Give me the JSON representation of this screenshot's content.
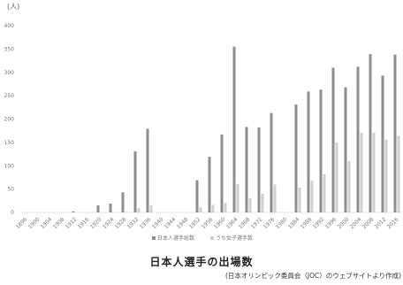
{
  "caption": {
    "title": "日本人選手の出場数",
    "source": "(日本オリンピック委員会（JOC）のウェブサイトより作成)"
  },
  "chart_data": {
    "type": "bar",
    "unit_label": "(人)",
    "ylim": [
      0,
      400
    ],
    "yticks": [
      0,
      50,
      100,
      150,
      200,
      250,
      300,
      350,
      400
    ],
    "grid": false,
    "legend_position": "bottom",
    "categories": [
      "1896",
      "1900",
      "1904",
      "1908",
      "1912",
      "1916",
      "1920",
      "1924",
      "1928",
      "1932",
      "1936",
      "1940",
      "1944",
      "1948",
      "1952",
      "1956",
      "1960",
      "1964",
      "1968",
      "1972",
      "1976",
      "1980",
      "1984",
      "1988",
      "1992",
      "1996",
      "2000",
      "2004",
      "2008",
      "2012",
      "2016"
    ],
    "series": [
      {
        "name": "日本人選手総数",
        "color": "#8e8e8e",
        "values": [
          0,
          0,
          0,
          0,
          2,
          0,
          15,
          19,
          43,
          131,
          179,
          0,
          0,
          0,
          69,
          119,
          167,
          355,
          183,
          182,
          213,
          0,
          231,
          259,
          263,
          310,
          268,
          312,
          339,
          293,
          338
        ]
      },
      {
        "name": "うち女子選手数",
        "color": "#cfcfcf",
        "values": [
          0,
          0,
          0,
          0,
          0,
          0,
          0,
          0,
          1,
          9,
          15,
          0,
          0,
          0,
          11,
          16,
          20,
          61,
          30,
          40,
          60,
          0,
          53,
          68,
          82,
          150,
          110,
          171,
          171,
          156,
          164
        ]
      }
    ]
  }
}
